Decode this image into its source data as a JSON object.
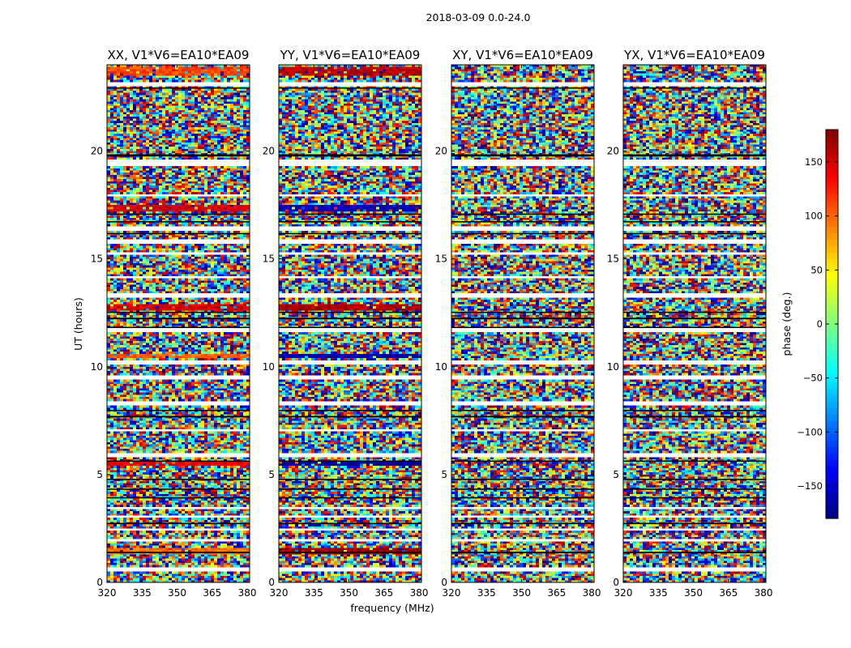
{
  "chart_data": {
    "type": "heatmap",
    "title": "2018-03-09 0.0-24.0",
    "xlabel": "frequency (MHz)",
    "ylabel": "UT (hours)",
    "xlim": [
      320,
      381
    ],
    "ylim": [
      0,
      24
    ],
    "x_ticks": [
      "320",
      "335",
      "350",
      "365",
      "380"
    ],
    "x_tick_values": [
      320,
      335,
      350,
      365,
      380
    ],
    "y_ticks": [
      "0",
      "5",
      "10",
      "15",
      "20"
    ],
    "y_tick_values": [
      0,
      5,
      10,
      15,
      20
    ],
    "panels": [
      {
        "title": "XX, V1*V6=EA10*EA09",
        "dominant_phase_bands": [
          {
            "t_start": 1.3,
            "t_end": 1.6,
            "phase": 95
          },
          {
            "t_start": 5.4,
            "t_end": 5.6,
            "phase": 140
          },
          {
            "t_start": 10.4,
            "t_end": 10.6,
            "phase": 100
          },
          {
            "t_start": 12.6,
            "t_end": 12.9,
            "phase": 150
          },
          {
            "t_start": 17.2,
            "t_end": 17.5,
            "phase": 150
          },
          {
            "t_start": 23.5,
            "t_end": 23.9,
            "phase": 110
          }
        ]
      },
      {
        "title": "YY, V1*V6=EA10*EA09",
        "dominant_phase_bands": [
          {
            "t_start": 1.3,
            "t_end": 1.6,
            "phase": 170
          },
          {
            "t_start": 5.4,
            "t_end": 5.6,
            "phase": -170
          },
          {
            "t_start": 10.4,
            "t_end": 10.6,
            "phase": -165
          },
          {
            "t_start": 12.6,
            "t_end": 12.9,
            "phase": 165
          },
          {
            "t_start": 17.2,
            "t_end": 17.5,
            "phase": -160
          },
          {
            "t_start": 23.5,
            "t_end": 23.9,
            "phase": 160
          }
        ]
      },
      {
        "title": "XY, V1*V6=EA10*EA09",
        "dominant_phase_bands": []
      },
      {
        "title": "YX, V1*V6=EA10*EA09",
        "dominant_phase_bands": []
      }
    ],
    "flagged_time_ranges": [
      [
        0.55,
        0.65
      ],
      [
        1.9,
        2.0
      ],
      [
        2.4,
        2.5
      ],
      [
        2.95,
        3.1
      ],
      [
        3.45,
        3.55
      ],
      [
        5.85,
        6.0
      ],
      [
        7.0,
        7.1
      ],
      [
        8.2,
        8.35
      ],
      [
        9.45,
        9.6
      ],
      [
        10.15,
        10.3
      ],
      [
        11.65,
        11.75
      ],
      [
        13.25,
        13.4
      ],
      [
        14.05,
        14.15
      ],
      [
        15.15,
        15.25
      ],
      [
        15.75,
        15.85
      ],
      [
        16.35,
        16.45
      ],
      [
        17.9,
        18.0
      ],
      [
        19.3,
        19.6
      ],
      [
        23.05,
        23.15
      ]
    ],
    "black_bands": [
      [
        1.35,
        1.42
      ],
      [
        2.7,
        2.76
      ],
      [
        3.9,
        3.95
      ],
      [
        4.3,
        4.35
      ],
      [
        4.75,
        4.8
      ],
      [
        5.6,
        5.65
      ],
      [
        7.65,
        7.72
      ],
      [
        7.95,
        8.0
      ],
      [
        11.8,
        11.85
      ],
      [
        12.2,
        12.27
      ],
      [
        12.5,
        12.55
      ],
      [
        16.15,
        16.2
      ],
      [
        16.7,
        16.75
      ],
      [
        17.05,
        17.1
      ],
      [
        19.75,
        19.85
      ],
      [
        22.9,
        22.95
      ]
    ],
    "colorbar": {
      "label": "phase (deg.)",
      "range": [
        -180,
        180
      ],
      "ticks": [
        "150",
        "100",
        "50",
        "0",
        "−50",
        "−100",
        "−150"
      ],
      "tick_values": [
        150,
        100,
        50,
        0,
        -50,
        -100,
        -150
      ],
      "colormap": "jet"
    }
  }
}
